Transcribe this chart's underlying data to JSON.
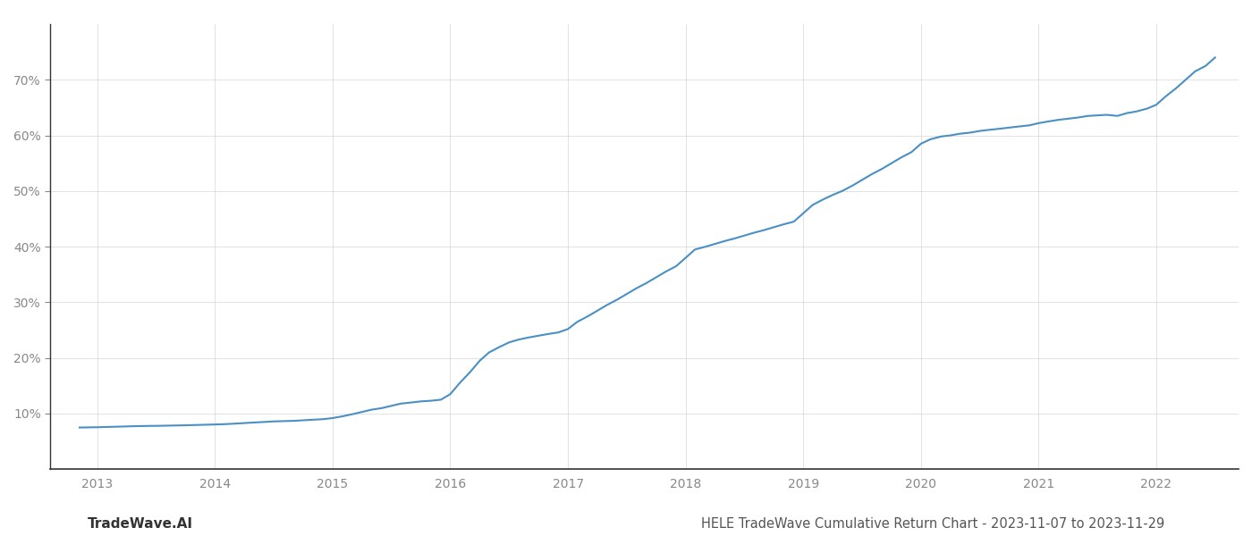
{
  "title": "HELE TradeWave Cumulative Return Chart - 2023-11-07 to 2023-11-29",
  "watermark": "TradeWave.AI",
  "line_color": "#4a90c4",
  "background_color": "#ffffff",
  "grid_color": "#cccccc",
  "x_years": [
    2013,
    2014,
    2015,
    2016,
    2017,
    2018,
    2019,
    2020,
    2021,
    2022
  ],
  "x_data": [
    2012.85,
    2013.0,
    2013.08,
    2013.17,
    2013.25,
    2013.33,
    2013.42,
    2013.5,
    2013.58,
    2013.67,
    2013.75,
    2013.83,
    2013.92,
    2014.0,
    2014.08,
    2014.17,
    2014.25,
    2014.33,
    2014.42,
    2014.5,
    2014.58,
    2014.67,
    2014.75,
    2014.83,
    2014.92,
    2015.0,
    2015.08,
    2015.17,
    2015.25,
    2015.33,
    2015.42,
    2015.5,
    2015.58,
    2015.67,
    2015.75,
    2015.83,
    2015.92,
    2016.0,
    2016.08,
    2016.17,
    2016.25,
    2016.33,
    2016.42,
    2016.5,
    2016.58,
    2016.67,
    2016.75,
    2016.83,
    2016.92,
    2017.0,
    2017.08,
    2017.17,
    2017.25,
    2017.33,
    2017.42,
    2017.5,
    2017.58,
    2017.67,
    2017.75,
    2017.83,
    2017.92,
    2018.0,
    2018.08,
    2018.17,
    2018.25,
    2018.33,
    2018.42,
    2018.5,
    2018.58,
    2018.67,
    2018.75,
    2018.83,
    2018.92,
    2019.0,
    2019.08,
    2019.17,
    2019.25,
    2019.33,
    2019.42,
    2019.5,
    2019.58,
    2019.67,
    2019.75,
    2019.83,
    2019.92,
    2020.0,
    2020.08,
    2020.17,
    2020.25,
    2020.33,
    2020.42,
    2020.5,
    2020.58,
    2020.67,
    2020.75,
    2020.83,
    2020.92,
    2021.0,
    2021.08,
    2021.17,
    2021.25,
    2021.33,
    2021.42,
    2021.5,
    2021.58,
    2021.67,
    2021.75,
    2021.83,
    2021.92,
    2022.0,
    2022.08,
    2022.17,
    2022.25,
    2022.33,
    2022.42,
    2022.5
  ],
  "y_data": [
    7.5,
    7.55,
    7.6,
    7.65,
    7.7,
    7.75,
    7.78,
    7.8,
    7.83,
    7.87,
    7.9,
    7.95,
    8.0,
    8.05,
    8.1,
    8.2,
    8.3,
    8.4,
    8.5,
    8.6,
    8.65,
    8.7,
    8.8,
    8.9,
    9.0,
    9.2,
    9.5,
    9.9,
    10.3,
    10.7,
    11.0,
    11.4,
    11.8,
    12.0,
    12.2,
    12.3,
    12.5,
    13.5,
    15.5,
    17.5,
    19.5,
    21.0,
    22.0,
    22.8,
    23.3,
    23.7,
    24.0,
    24.3,
    24.6,
    25.2,
    26.5,
    27.5,
    28.5,
    29.5,
    30.5,
    31.5,
    32.5,
    33.5,
    34.5,
    35.5,
    36.5,
    38.0,
    39.5,
    40.0,
    40.5,
    41.0,
    41.5,
    42.0,
    42.5,
    43.0,
    43.5,
    44.0,
    44.5,
    46.0,
    47.5,
    48.5,
    49.3,
    50.0,
    51.0,
    52.0,
    53.0,
    54.0,
    55.0,
    56.0,
    57.0,
    58.5,
    59.3,
    59.8,
    60.0,
    60.3,
    60.5,
    60.8,
    61.0,
    61.2,
    61.4,
    61.6,
    61.8,
    62.2,
    62.5,
    62.8,
    63.0,
    63.2,
    63.5,
    63.6,
    63.7,
    63.5,
    64.0,
    64.3,
    64.8,
    65.5,
    67.0,
    68.5,
    70.0,
    71.5,
    72.5,
    74.0
  ],
  "ylim": [
    0,
    80
  ],
  "yticks": [
    10,
    20,
    30,
    40,
    50,
    60,
    70
  ],
  "xlim": [
    2012.6,
    2022.7
  ],
  "line_width": 1.5,
  "title_fontsize": 10.5,
  "watermark_fontsize": 11,
  "tick_fontsize": 10,
  "grid_color_alpha": 0.8,
  "grid_linestyle": "-",
  "grid_linewidth": 0.5,
  "left_spine_color": "#333333",
  "bottom_spine_color": "#333333"
}
